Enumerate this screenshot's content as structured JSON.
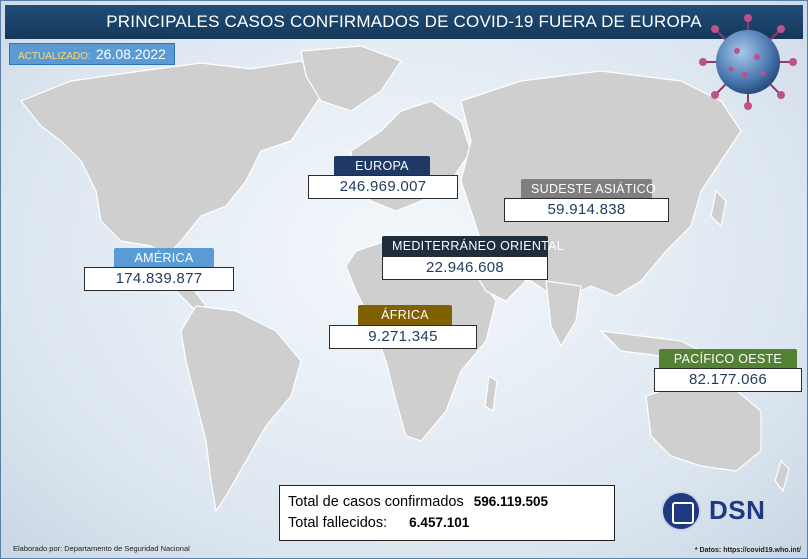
{
  "header": {
    "title": "PRINCIPALES CASOS CONFIRMADOS DE COVID-19 FUERA DE EUROPA"
  },
  "updated": {
    "label": "ACTUALIZADO:",
    "date": "26.08.2022"
  },
  "regions": [
    {
      "name": "EUROPA",
      "value": "246.969.007",
      "color": "#203864"
    },
    {
      "name": "SUDESTE ASIÁTICO",
      "value": "59.914.838",
      "color": "#7f7f7f"
    },
    {
      "name": "MEDITERRÁNEO ORIENTAL",
      "value": "22.946.608",
      "color": "#1f2d3d"
    },
    {
      "name": "AMÉRICA",
      "value": "174.839.877",
      "color": "#5b9bd5"
    },
    {
      "name": "ÁFRICA",
      "value": "9.271.345",
      "color": "#806000"
    },
    {
      "name": "PACÍFICO OESTE",
      "value": "82.177.066",
      "color": "#548235"
    }
  ],
  "totals": {
    "cases_label": "Total de casos confirmados",
    "cases_value": "596.119.505",
    "deaths_label": "Total fallecidos:",
    "deaths_value": "6.457.101"
  },
  "footer": {
    "credit": "Elaborado por: Departamento de Seguridad Nacional",
    "source": "* Datos: https://covid19.who.int/"
  },
  "logo": {
    "text": "DSN"
  },
  "colors": {
    "land": "#cfcfcf",
    "land_stroke": "#ffffff",
    "title_bg": "#1f4e79"
  }
}
